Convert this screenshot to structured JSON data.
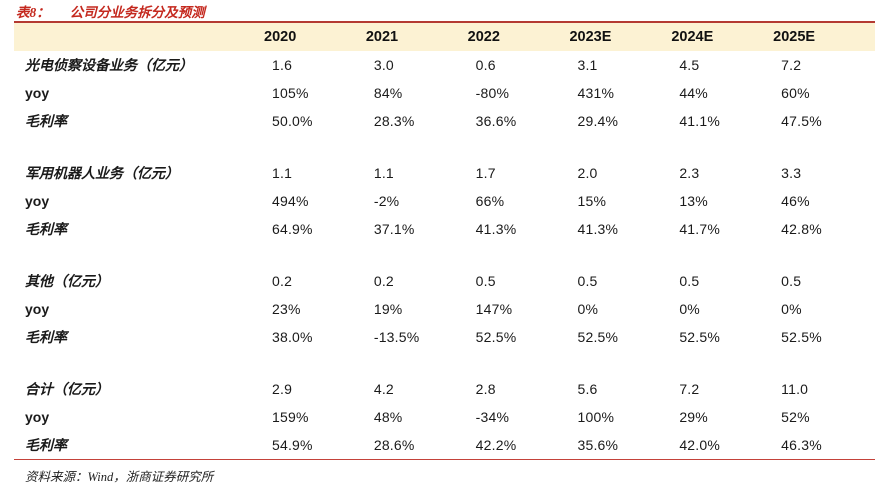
{
  "title": {
    "prefix": "表8：",
    "text": "公司分业务拆分及预测"
  },
  "table": {
    "columns": [
      "2020",
      "2021",
      "2022",
      "2023E",
      "2024E",
      "2025E"
    ],
    "groups": [
      {
        "rows": [
          {
            "label": "光电侦察设备业务（亿元）",
            "values": [
              "1.6",
              "3.0",
              "0.6",
              "3.1",
              "4.5",
              "7.2"
            ]
          },
          {
            "label": "yoy",
            "values": [
              "105%",
              "84%",
              "-80%",
              "431%",
              "44%",
              "60%"
            ]
          },
          {
            "label": "毛利率",
            "values": [
              "50.0%",
              "28.3%",
              "36.6%",
              "29.4%",
              "41.1%",
              "47.5%"
            ]
          }
        ]
      },
      {
        "rows": [
          {
            "label": "军用机器人业务（亿元）",
            "values": [
              "1.1",
              "1.1",
              "1.7",
              "2.0",
              "2.3",
              "3.3"
            ]
          },
          {
            "label": "yoy",
            "values": [
              "494%",
              "-2%",
              "66%",
              "15%",
              "13%",
              "46%"
            ]
          },
          {
            "label": "毛利率",
            "values": [
              "64.9%",
              "37.1%",
              "41.3%",
              "41.3%",
              "41.7%",
              "42.8%"
            ]
          }
        ]
      },
      {
        "rows": [
          {
            "label": "其他（亿元）",
            "values": [
              "0.2",
              "0.2",
              "0.5",
              "0.5",
              "0.5",
              "0.5"
            ]
          },
          {
            "label": "yoy",
            "values": [
              "23%",
              "19%",
              "147%",
              "0%",
              "0%",
              "0%"
            ]
          },
          {
            "label": "毛利率",
            "values": [
              "38.0%",
              "-13.5%",
              "52.5%",
              "52.5%",
              "52.5%",
              "52.5%"
            ]
          }
        ]
      },
      {
        "rows": [
          {
            "label": "合计（亿元）",
            "values": [
              "2.9",
              "4.2",
              "2.8",
              "5.6",
              "7.2",
              "11.0"
            ]
          },
          {
            "label": "yoy",
            "values": [
              "159%",
              "48%",
              "-34%",
              "100%",
              "29%",
              "52%"
            ]
          },
          {
            "label": "毛利率",
            "values": [
              "54.9%",
              "28.6%",
              "42.2%",
              "35.6%",
              "42.0%",
              "46.3%"
            ]
          }
        ]
      }
    ]
  },
  "source": "资料来源：Wind，浙商证券研究所",
  "colors": {
    "title_red": "#c4281e",
    "rule_red": "#b43a32",
    "rule_red_thin": "#c4423a",
    "header_bg": "#fcf2d3",
    "text": "#1a1a1a"
  }
}
